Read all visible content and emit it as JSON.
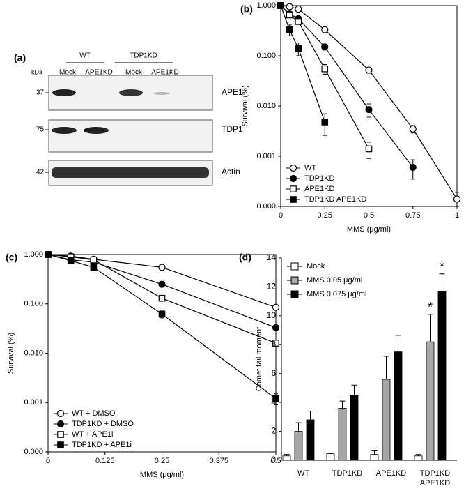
{
  "panel_a": {
    "label": "(a)",
    "units": "kDa",
    "groups": [
      {
        "name": "WT",
        "lanes": [
          "Mock",
          "APE1KD"
        ]
      },
      {
        "name": "TDP1KD",
        "lanes": [
          "Mock",
          "APE1KD"
        ]
      }
    ],
    "rows": [
      {
        "marker": "37",
        "protein": "APE1"
      },
      {
        "marker": "75",
        "protein": "TDP1"
      },
      {
        "marker": "42",
        "protein": "Actin"
      }
    ]
  },
  "chart_data": [
    {
      "type": "line",
      "label": "(b)",
      "ylabel": "Survival (%)",
      "xlabel": "MMS (μg/ml)",
      "log_y": true,
      "frame": true,
      "legend": "lower left",
      "xlim": [
        0,
        1
      ],
      "xticks": [
        0,
        0.25,
        0.5,
        0.75,
        1
      ],
      "ylim": [
        0.0001,
        1
      ],
      "yticks": [
        {
          "value": 0.0001,
          "label": "0.000"
        },
        {
          "value": 0.001,
          "label": "0.001"
        },
        {
          "value": 0.01,
          "label": "0.010"
        },
        {
          "value": 0.1,
          "label": "0.100"
        },
        {
          "value": 1,
          "label": "1.000"
        }
      ],
      "series": [
        {
          "name": "WT",
          "color": "#000000",
          "marker": "circle",
          "filled": false,
          "x": [
            0,
            0.05,
            0.1,
            0.25,
            0.5,
            0.75,
            1
          ],
          "values": [
            1,
            0.95,
            0.85,
            0.33,
            0.052,
            0.0035,
            0.00014
          ],
          "errors": [
            0,
            0.05,
            0.05,
            0.03,
            0.007,
            0.0006,
            5e-05
          ]
        },
        {
          "name": "TDP1KD",
          "color": "#000000",
          "marker": "circle",
          "filled": true,
          "x": [
            0,
            0.05,
            0.1,
            0.25,
            0.5,
            0.75
          ],
          "values": [
            1,
            0.68,
            0.55,
            0.15,
            0.0085,
            0.0006
          ],
          "errors": [
            0,
            0.05,
            0.05,
            0.02,
            0.0025,
            0.00025
          ]
        },
        {
          "name": "APE1KD",
          "color": "#000000",
          "marker": "square",
          "filled": false,
          "x": [
            0,
            0.05,
            0.1,
            0.25,
            0.5
          ],
          "values": [
            1,
            0.65,
            0.48,
            0.055,
            0.0014
          ],
          "errors": [
            0,
            0.05,
            0.05,
            0.012,
            0.0005
          ]
        },
        {
          "name": "TDP1KD APE1KD",
          "color": "#000000",
          "marker": "square",
          "filled": true,
          "x": [
            0,
            0.05,
            0.1,
            0.25
          ],
          "values": [
            1,
            0.33,
            0.14,
            0.0048
          ],
          "errors": [
            0,
            0.08,
            0.04,
            0.0022
          ]
        }
      ]
    },
    {
      "type": "line",
      "label": "(c)",
      "ylabel": "Survival (%)",
      "xlabel": "MMS (μg/ml)",
      "log_y": true,
      "frame": true,
      "legend": "lower left",
      "xlim": [
        0,
        0.5
      ],
      "xticks": [
        0,
        0.125,
        0.25,
        0.375,
        0.5
      ],
      "ylim": [
        0.0001,
        1
      ],
      "yticks": [
        {
          "value": 0.0001,
          "label": "0.000"
        },
        {
          "value": 0.001,
          "label": "0.001"
        },
        {
          "value": 0.01,
          "label": "0.010"
        },
        {
          "value": 0.1,
          "label": "0.100"
        },
        {
          "value": 1,
          "label": "1.000"
        }
      ],
      "series": [
        {
          "name": "WT + DMSO",
          "color": "#000000",
          "marker": "circle",
          "filled": false,
          "x": [
            0,
            0.05,
            0.1,
            0.25,
            0.5
          ],
          "values": [
            1,
            0.93,
            0.8,
            0.55,
            0.085
          ]
        },
        {
          "name": "TDP1KD + DMSO",
          "color": "#000000",
          "marker": "circle",
          "filled": true,
          "x": [
            0,
            0.05,
            0.1,
            0.25,
            0.5
          ],
          "values": [
            1,
            0.78,
            0.7,
            0.25,
            0.033
          ]
        },
        {
          "name": "WT + APE1i",
          "color": "#000000",
          "marker": "square",
          "filled": false,
          "x": [
            0,
            0.05,
            0.1,
            0.25,
            0.5
          ],
          "values": [
            1,
            0.9,
            0.78,
            0.13,
            0.016
          ]
        },
        {
          "name": "TDP1KD + APE1i",
          "color": "#000000",
          "marker": "square",
          "filled": true,
          "x": [
            0,
            0.05,
            0.1,
            0.25,
            0.5
          ],
          "values": [
            1,
            0.75,
            0.55,
            0.062,
            0.0012
          ],
          "errors": [
            0,
            0.03,
            0.05,
            0.01,
            0.0003
          ]
        }
      ]
    },
    {
      "type": "bar",
      "label": "(d)",
      "ylabel": "Comet tail moment",
      "legend": "upper left",
      "categories": [
        "WT",
        "TDP1KD",
        "APE1KD",
        "TDP1KD APE1KD"
      ],
      "ylim": [
        0,
        14
      ],
      "yticks": [
        0,
        2,
        4,
        6,
        8,
        10,
        12,
        14
      ],
      "series": [
        {
          "name": "Mock",
          "color": "#ffffff",
          "values": [
            0.3,
            0.45,
            0.4,
            0.3
          ],
          "errors": [
            0.1,
            0.05,
            0.25,
            0.1
          ]
        },
        {
          "name": "MMS 0.05 μg/ml",
          "color": "#a6a6a6",
          "values": [
            2.0,
            3.6,
            5.6,
            8.2
          ],
          "errors": [
            0.6,
            0.5,
            1.6,
            1.9
          ]
        },
        {
          "name": "MMS  0.075 μg/ml",
          "color": "#000000",
          "values": [
            2.8,
            4.5,
            7.5,
            11.7
          ],
          "errors": [
            0.6,
            0.7,
            1.15,
            1.2
          ]
        }
      ],
      "annotations": [
        {
          "text": "*",
          "series": 1,
          "category": 3
        },
        {
          "text": "*",
          "series": 2,
          "category": 3
        }
      ]
    }
  ]
}
